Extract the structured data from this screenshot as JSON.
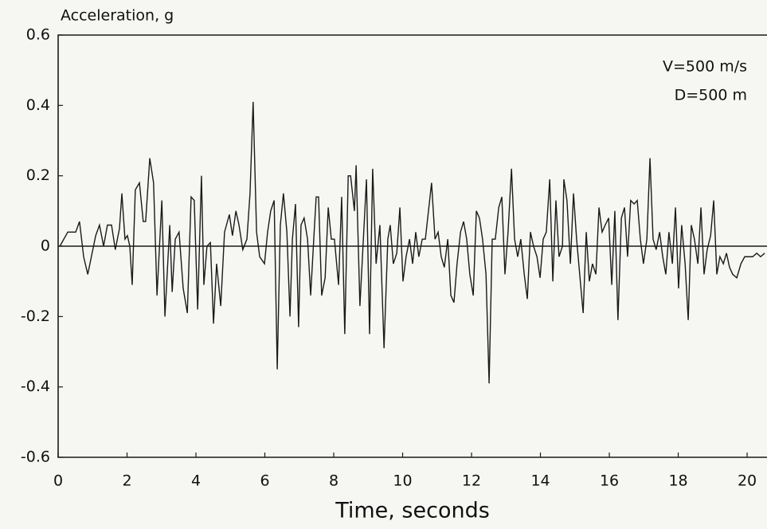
{
  "chart_data": {
    "type": "line",
    "ylabel": "Acceleration, g",
    "xlabel": "Time, seconds",
    "annotations": [
      "V=500 m/s",
      "D=500 m"
    ],
    "xlim": [
      0,
      20.6
    ],
    "ylim": [
      -0.6,
      0.6
    ],
    "xticks": [
      0,
      2,
      4,
      6,
      8,
      10,
      12,
      14,
      16,
      18,
      20
    ],
    "yticks": [
      -0.6,
      -0.4,
      -0.2,
      0,
      0.2,
      0.4,
      0.6
    ],
    "grid": false,
    "zero_line": true,
    "x": [
      0.05,
      0.28,
      0.51,
      0.62,
      0.74,
      0.86,
      1.09,
      1.2,
      1.32,
      1.43,
      1.55,
      1.66,
      1.78,
      1.85,
      1.94,
      2.01,
      2.08,
      2.15,
      2.24,
      2.36,
      2.47,
      2.54,
      2.66,
      2.77,
      2.87,
      3.01,
      3.1,
      3.24,
      3.31,
      3.4,
      3.51,
      3.63,
      3.75,
      3.86,
      3.95,
      4.05,
      4.16,
      4.23,
      4.32,
      4.42,
      4.51,
      4.6,
      4.72,
      4.83,
      4.97,
      5.06,
      5.16,
      5.25,
      5.36,
      5.48,
      5.57,
      5.66,
      5.76,
      5.85,
      5.99,
      6.08,
      6.17,
      6.27,
      6.36,
      6.45,
      6.54,
      6.64,
      6.73,
      6.8,
      6.89,
      6.98,
      7.05,
      7.14,
      7.24,
      7.33,
      7.42,
      7.49,
      7.56,
      7.65,
      7.75,
      7.84,
      7.93,
      8.02,
      8.14,
      8.23,
      8.32,
      8.42,
      8.49,
      8.6,
      8.65,
      8.76,
      8.86,
      8.95,
      9.04,
      9.13,
      9.23,
      9.34,
      9.46,
      9.57,
      9.64,
      9.73,
      9.83,
      9.92,
      10.01,
      10.1,
      10.2,
      10.29,
      10.38,
      10.47,
      10.57,
      10.66,
      10.75,
      10.84,
      10.94,
      11.03,
      11.12,
      11.21,
      11.31,
      11.4,
      11.49,
      11.58,
      11.68,
      11.77,
      11.86,
      11.95,
      12.05,
      12.14,
      12.23,
      12.32,
      12.42,
      12.51,
      12.6,
      12.69,
      12.79,
      12.88,
      12.97,
      13.06,
      13.16,
      13.25,
      13.34,
      13.43,
      13.53,
      13.62,
      13.71,
      13.8,
      13.9,
      13.99,
      14.08,
      14.17,
      14.27,
      14.36,
      14.45,
      14.54,
      14.64,
      14.68,
      14.77,
      14.87,
      14.96,
      15.05,
      15.14,
      15.24,
      15.33,
      15.42,
      15.51,
      15.61,
      15.7,
      15.79,
      15.88,
      15.98,
      16.07,
      16.16,
      16.25,
      16.35,
      16.44,
      16.53,
      16.62,
      16.72,
      16.81,
      16.9,
      16.99,
      17.09,
      17.18,
      17.27,
      17.36,
      17.46,
      17.55,
      17.64,
      17.73,
      17.83,
      17.92,
      18.01,
      18.1,
      18.2,
      18.29,
      18.38,
      18.47,
      18.57,
      18.66,
      18.75,
      18.84,
      18.94,
      19.03,
      19.12,
      19.21,
      19.31,
      19.4,
      19.49,
      19.58,
      19.7,
      19.82,
      19.93,
      20.05,
      20.16,
      20.28,
      20.39,
      20.51
    ],
    "series": [
      {
        "name": "Acceleration",
        "color": "#1a1a1a",
        "values": [
          0,
          0.04,
          0.04,
          0.07,
          -0.03,
          -0.08,
          0.03,
          0.06,
          0,
          0.06,
          0.06,
          -0.01,
          0.05,
          0.15,
          0.02,
          0.03,
          0,
          -0.11,
          0.16,
          0.18,
          0.07,
          0.07,
          0.25,
          0.18,
          -0.14,
          0.13,
          -0.2,
          0.06,
          -0.13,
          0.02,
          0.04,
          -0.12,
          -0.19,
          0.14,
          0.13,
          -0.18,
          0.2,
          -0.11,
          0,
          0.01,
          -0.22,
          -0.05,
          -0.17,
          0.04,
          0.09,
          0.03,
          0.1,
          0.06,
          -0.01,
          0.02,
          0.15,
          0.41,
          0.04,
          -0.03,
          -0.05,
          0.04,
          0.1,
          0.13,
          -0.35,
          0.06,
          0.15,
          0.04,
          -0.2,
          0.02,
          0.12,
          -0.23,
          0.06,
          0.08,
          0.02,
          -0.14,
          0.02,
          0.14,
          0.14,
          -0.14,
          -0.09,
          0.11,
          0.02,
          0.02,
          -0.11,
          0.14,
          -0.25,
          0.2,
          0.2,
          0.1,
          0.23,
          -0.17,
          0.02,
          0.19,
          -0.25,
          0.22,
          -0.05,
          0.06,
          -0.29,
          0.02,
          0.06,
          -0.05,
          -0.02,
          0.11,
          -0.1,
          -0.03,
          0.02,
          -0.05,
          0.04,
          -0.03,
          0.02,
          0.02,
          0.1,
          0.18,
          0.02,
          0.04,
          -0.03,
          -0.06,
          0.02,
          -0.14,
          -0.16,
          -0.05,
          0.04,
          0.07,
          0.02,
          -0.08,
          -0.14,
          0.1,
          0.08,
          0.02,
          -0.08,
          -0.39,
          0.02,
          0.02,
          0.11,
          0.14,
          -0.08,
          0.04,
          0.22,
          0.02,
          -0.03,
          0.02,
          -0.08,
          -0.15,
          0.04,
          0,
          -0.03,
          -0.09,
          0.02,
          0.04,
          0.19,
          -0.1,
          0.13,
          -0.03,
          0,
          0.19,
          0.13,
          -0.05,
          0.15,
          0.02,
          -0.08,
          -0.19,
          0.04,
          -0.1,
          -0.05,
          -0.08,
          0.11,
          0.04,
          0.06,
          0.08,
          -0.11,
          0.1,
          -0.21,
          0.08,
          0.11,
          -0.03,
          0.13,
          0.12,
          0.13,
          0.02,
          -0.05,
          0.02,
          0.25,
          0.02,
          -0.01,
          0.04,
          -0.03,
          -0.08,
          0.04,
          -0.05,
          0.11,
          -0.12,
          0.06,
          -0.05,
          -0.21,
          0.06,
          0.02,
          -0.05,
          0.11,
          -0.08,
          -0.01,
          0.03,
          0.13,
          -0.08,
          -0.03,
          -0.05,
          -0.02,
          -0.06,
          -0.08,
          -0.09,
          -0.05,
          -0.03,
          -0.03,
          -0.03,
          -0.02,
          -0.03,
          -0.02
        ]
      }
    ]
  }
}
